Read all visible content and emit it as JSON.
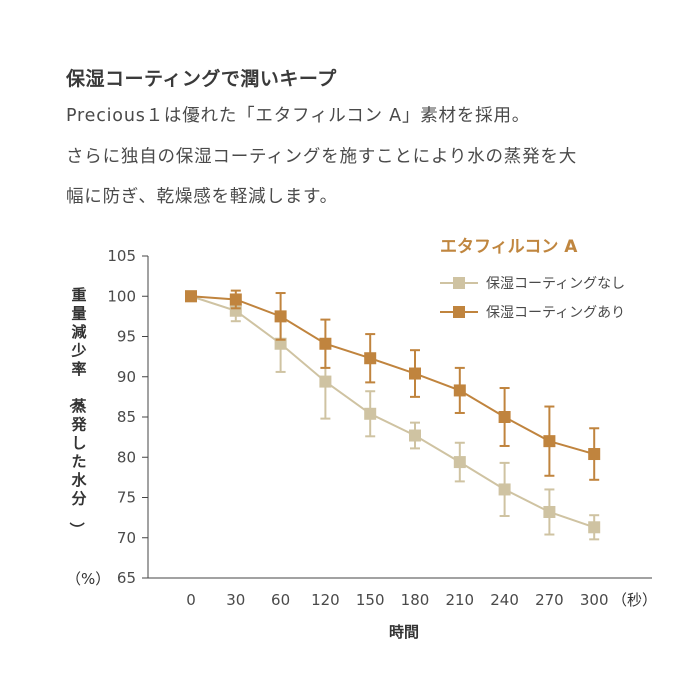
{
  "header": {
    "title": "保湿コーティングで潤いキープ",
    "lines": [
      "Precious１は優れた「エタフィルコン A」素材を採用。",
      "さらに独自の保湿コーティングを施すことにより水の蒸発を大",
      "幅に防ぎ、乾燥感を軽減します。"
    ]
  },
  "chart_data": {
    "type": "line",
    "legend_title": "エタフィルコン A",
    "legend_position": "top-right",
    "xlabel": "時間",
    "x_unit": "（秒）",
    "ylabel": "重量減少率（蒸発した水分）",
    "y_unit": "（%）",
    "x": [
      0,
      30,
      60,
      120,
      150,
      180,
      210,
      240,
      270,
      300
    ],
    "ylim": [
      65,
      105
    ],
    "yticks": [
      65,
      70,
      75,
      80,
      85,
      90,
      95,
      100,
      105
    ],
    "grid": false,
    "series": [
      {
        "name": "保湿コーティングなし",
        "color": "#cfc3a2",
        "values": [
          100,
          98.2,
          94.1,
          89.4,
          85.4,
          82.7,
          79.4,
          76.0,
          73.2,
          71.3
        ],
        "err": [
          0,
          1.3,
          3.5,
          4.6,
          2.8,
          1.6,
          2.4,
          3.3,
          2.8,
          1.5
        ]
      },
      {
        "name": "保湿コーティングあり",
        "color": "#c0843e",
        "values": [
          100,
          99.6,
          97.5,
          94.1,
          92.3,
          90.4,
          88.3,
          85.0,
          82.0,
          80.4
        ],
        "err": [
          0,
          1.1,
          2.9,
          3.0,
          3.0,
          2.9,
          2.8,
          3.6,
          4.3,
          3.2
        ]
      }
    ]
  }
}
